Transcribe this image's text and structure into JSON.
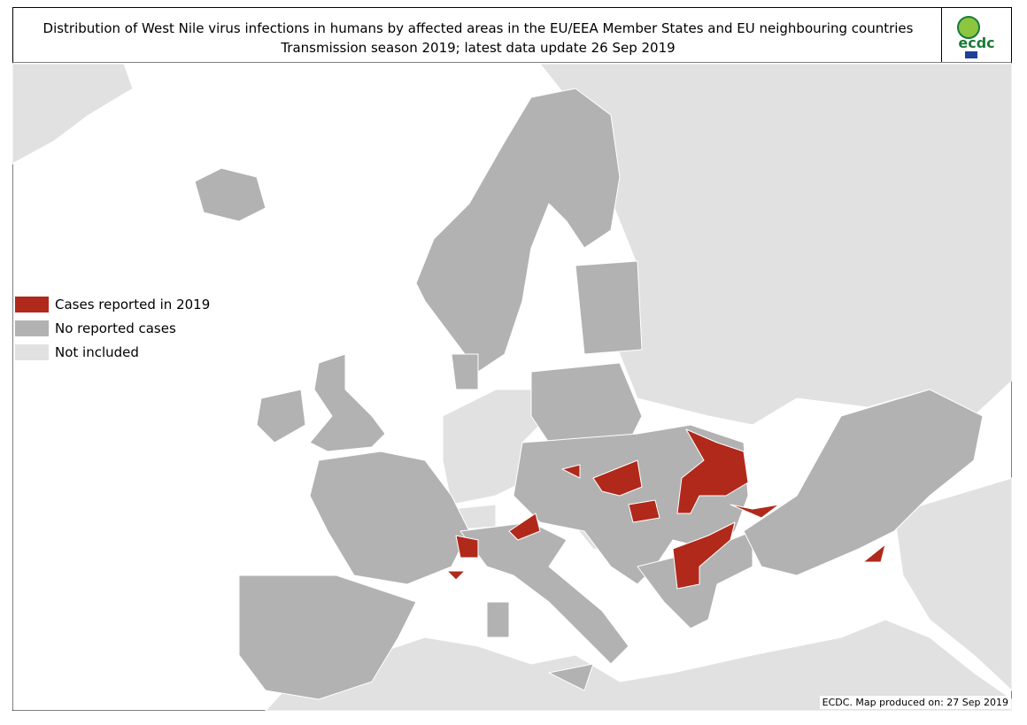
{
  "header": {
    "title": "Distribution of West Nile virus infections in humans by affected areas in the EU/EEA Member States and EU neighbouring countries",
    "subtitle": "Transmission season 2019; latest data update 26 Sep 2019",
    "logo": "ecdc"
  },
  "legend": {
    "items": [
      {
        "label": "Cases reported in 2019",
        "color": "#b0291b"
      },
      {
        "label": "No reported cases",
        "color": "#b2b2b2"
      },
      {
        "label": "Not included",
        "color": "#e1e1e1"
      }
    ]
  },
  "footer": {
    "credit": "ECDC. Map produced on: 27 Sep 2019"
  }
}
